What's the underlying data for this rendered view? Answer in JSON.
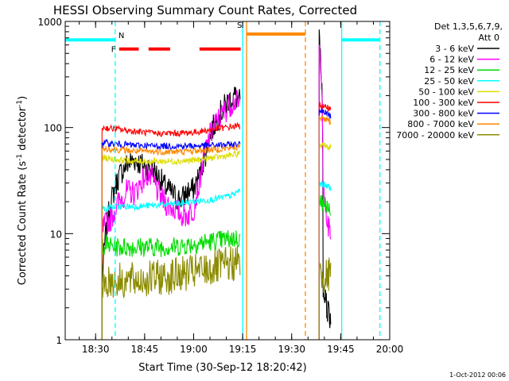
{
  "chart_data": {
    "type": "line",
    "title": "HESSI Observing Summary Count Rates, Corrected",
    "xlabel": "Start Time (30-Sep-12 18:20:42)",
    "ylabel_main": "Corrected Count Rate (s",
    "ylabel_sup1": "-1",
    "ylabel_mid": " detector",
    "ylabel_sup2": "-1",
    "ylabel_end": ")",
    "footer": "1-Oct-2012 00:06",
    "yscale": "log",
    "xlim": [
      18.345,
      20.0
    ],
    "ylim": [
      1,
      1000
    ],
    "x_ticks": [
      {
        "v": 18.5,
        "label": "18:30"
      },
      {
        "v": 18.75,
        "label": "18:45"
      },
      {
        "v": 19.0,
        "label": "19:00"
      },
      {
        "v": 19.25,
        "label": "19:15"
      },
      {
        "v": 19.5,
        "label": "19:30"
      },
      {
        "v": 19.75,
        "label": "19:45"
      },
      {
        "v": 20.0,
        "label": "20:00"
      }
    ],
    "y_ticks": [
      {
        "v": 1,
        "label": "1"
      },
      {
        "v": 10,
        "label": "10"
      },
      {
        "v": 100,
        "label": "100"
      },
      {
        "v": 1000,
        "label": "1000"
      }
    ],
    "legend": {
      "title1": "Det 1,3,5,6,7,9,",
      "title2": "Att 0",
      "entries": [
        {
          "label": "3 - 6 keV",
          "color": "#000000"
        },
        {
          "label": "6 - 12 keV",
          "color": "#ff00ff"
        },
        {
          "label": "12 - 25 keV",
          "color": "#00dd00"
        },
        {
          "label": "25 - 50 keV",
          "color": "#00ffff"
        },
        {
          "label": "50 - 100 keV",
          "color": "#dddd00"
        },
        {
          "label": "100 - 300 keV",
          "color": "#ff0000"
        },
        {
          "label": "300 - 800 keV",
          "color": "#0000ff"
        },
        {
          "label": "800 - 7000 keV",
          "color": "#ff8800"
        },
        {
          "label": "7000 - 20000 keV",
          "color": "#8b8b00"
        }
      ]
    },
    "flags": {
      "F": {
        "label": "F",
        "color": "#ff0000",
        "y": 550,
        "segments": [
          [
            18.62,
            18.72
          ],
          [
            18.77,
            18.88
          ],
          [
            19.03,
            19.24
          ]
        ]
      },
      "N": {
        "label": "N",
        "color": "#00ffff",
        "y": 670,
        "segments": [
          [
            18.345,
            18.6
          ],
          [
            19.755,
            19.95
          ]
        ]
      },
      "S": {
        "label": "S",
        "color": "#ff8800",
        "y": 760,
        "segments": [
          [
            19.27,
            19.57
          ]
        ]
      }
    },
    "vlines": [
      {
        "x": 18.6,
        "color": "#00ffff",
        "style": "dashed"
      },
      {
        "x": 19.25,
        "color": "#00ffff",
        "style": "solid"
      },
      {
        "x": 19.27,
        "color": "#ff8800",
        "style": "solid"
      },
      {
        "x": 19.57,
        "color": "#ff8800",
        "style": "dashed"
      },
      {
        "x": 19.755,
        "color": "#00ffff",
        "style": "solid"
      },
      {
        "x": 19.95,
        "color": "#00ffff",
        "style": "dashed"
      }
    ],
    "series": [
      {
        "name": "3 - 6 keV",
        "color": "#000000",
        "x": [
          18.533,
          18.58,
          18.62,
          18.66,
          18.7,
          18.73,
          18.76,
          18.79,
          18.82,
          18.85,
          18.88,
          18.91,
          18.94,
          18.97,
          19.0,
          19.03,
          19.06,
          19.09,
          19.12,
          19.15,
          19.18,
          19.21,
          19.24
        ],
        "y": [
          3,
          20,
          35,
          45,
          50,
          45,
          42,
          40,
          35,
          28,
          25,
          22,
          21,
          25,
          26,
          35,
          55,
          90,
          120,
          150,
          180,
          200,
          170
        ]
      },
      {
        "name": "6 - 12 keV",
        "color": "#ff00ff",
        "x": [
          18.533,
          18.58,
          18.62,
          18.66,
          18.7,
          18.73,
          18.76,
          18.79,
          18.82,
          18.85,
          18.88,
          18.91,
          18.94,
          18.97,
          19.0,
          19.03,
          19.06,
          19.09,
          19.12,
          19.15,
          19.18,
          19.21,
          19.24
        ],
        "y": [
          11,
          14,
          20,
          25,
          24,
          30,
          36,
          32,
          24,
          20,
          18,
          17,
          15,
          15,
          17,
          30,
          60,
          90,
          115,
          135,
          160,
          180,
          160
        ]
      },
      {
        "name": "12 - 25 keV",
        "color": "#00dd00",
        "x": [
          18.533,
          18.6,
          18.7,
          18.8,
          18.9,
          19.0,
          19.1,
          19.2,
          19.24
        ],
        "y": [
          8,
          7.5,
          7.5,
          7.5,
          7.5,
          8,
          8.5,
          9,
          9
        ]
      },
      {
        "name": "25 - 50 keV",
        "color": "#00ffff",
        "x": [
          18.533,
          18.6,
          18.7,
          18.8,
          18.9,
          19.0,
          19.1,
          19.2,
          19.24
        ],
        "y": [
          17,
          18,
          18,
          18.5,
          19,
          20,
          21,
          23,
          26
        ]
      },
      {
        "name": "50 - 100 keV",
        "color": "#dddd00",
        "x": [
          18.533,
          18.6,
          18.7,
          18.8,
          18.9,
          19.0,
          19.1,
          19.2,
          19.24
        ],
        "y": [
          52,
          50,
          48,
          48,
          48,
          49,
          52,
          55,
          57
        ]
      },
      {
        "name": "100 - 300 keV",
        "color": "#ff0000",
        "x": [
          18.533,
          18.6,
          18.7,
          18.8,
          18.9,
          19.0,
          19.1,
          19.2,
          19.24
        ],
        "y": [
          100,
          97,
          92,
          88,
          88,
          90,
          96,
          102,
          104
        ]
      },
      {
        "name": "300 - 800 keV",
        "color": "#0000ff",
        "x": [
          18.533,
          18.6,
          18.7,
          18.8,
          18.9,
          19.0,
          19.1,
          19.2,
          19.24
        ],
        "y": [
          72,
          70,
          68,
          67,
          67,
          67,
          68,
          69,
          70
        ]
      },
      {
        "name": "800 - 7000 keV",
        "color": "#ff8800",
        "x": [
          18.533,
          18.6,
          18.7,
          18.8,
          18.9,
          19.0,
          19.1,
          19.2,
          19.24
        ],
        "y": [
          64,
          62,
          60,
          59,
          59,
          60,
          62,
          64,
          66
        ]
      },
      {
        "name": "7000 - 20000 keV",
        "color": "#8b8b00",
        "x": [
          18.533,
          18.6,
          18.7,
          18.8,
          18.9,
          19.0,
          19.1,
          19.2,
          19.24
        ],
        "y": [
          3.5,
          3.6,
          3.6,
          3.8,
          4.0,
          4.3,
          4.7,
          5.2,
          5.5
        ]
      }
    ],
    "series_late": [
      {
        "name": "3 - 6 keV",
        "color": "#000000",
        "x": [
          19.64,
          19.66,
          19.68,
          19.7
        ],
        "y": [
          700,
          3,
          2,
          1.5
        ]
      },
      {
        "name": "6 - 12 keV",
        "color": "#ff00ff",
        "x": [
          19.64,
          19.66,
          19.68,
          19.7
        ],
        "y": [
          650,
          30,
          12,
          10
        ]
      },
      {
        "name": "12 - 25 keV",
        "color": "#00dd00",
        "x": [
          19.64,
          19.66,
          19.68,
          19.7
        ],
        "y": [
          20,
          19,
          18,
          18
        ]
      },
      {
        "name": "25 - 50 keV",
        "color": "#00ffff",
        "x": [
          19.64,
          19.66,
          19.68,
          19.7
        ],
        "y": [
          30,
          29,
          28,
          27
        ]
      },
      {
        "name": "50 - 100 keV",
        "color": "#dddd00",
        "x": [
          19.64,
          19.66,
          19.68,
          19.7
        ],
        "y": [
          68,
          67,
          66,
          65
        ]
      },
      {
        "name": "100 - 300 keV",
        "color": "#ff0000",
        "x": [
          19.64,
          19.66,
          19.68,
          19.7
        ],
        "y": [
          165,
          160,
          155,
          150
        ]
      },
      {
        "name": "300 - 800 keV",
        "color": "#0000ff",
        "x": [
          19.64,
          19.66,
          19.68,
          19.7
        ],
        "y": [
          145,
          140,
          135,
          128
        ]
      },
      {
        "name": "800 - 7000 keV",
        "color": "#ff8800",
        "x": [
          19.64,
          19.66,
          19.68,
          19.7
        ],
        "y": [
          125,
          122,
          118,
          112
        ]
      },
      {
        "name": "7000 - 20000 keV",
        "color": "#8b8b00",
        "x": [
          19.64,
          19.66,
          19.68,
          19.7
        ],
        "y": [
          4,
          4,
          4,
          4
        ]
      }
    ]
  }
}
